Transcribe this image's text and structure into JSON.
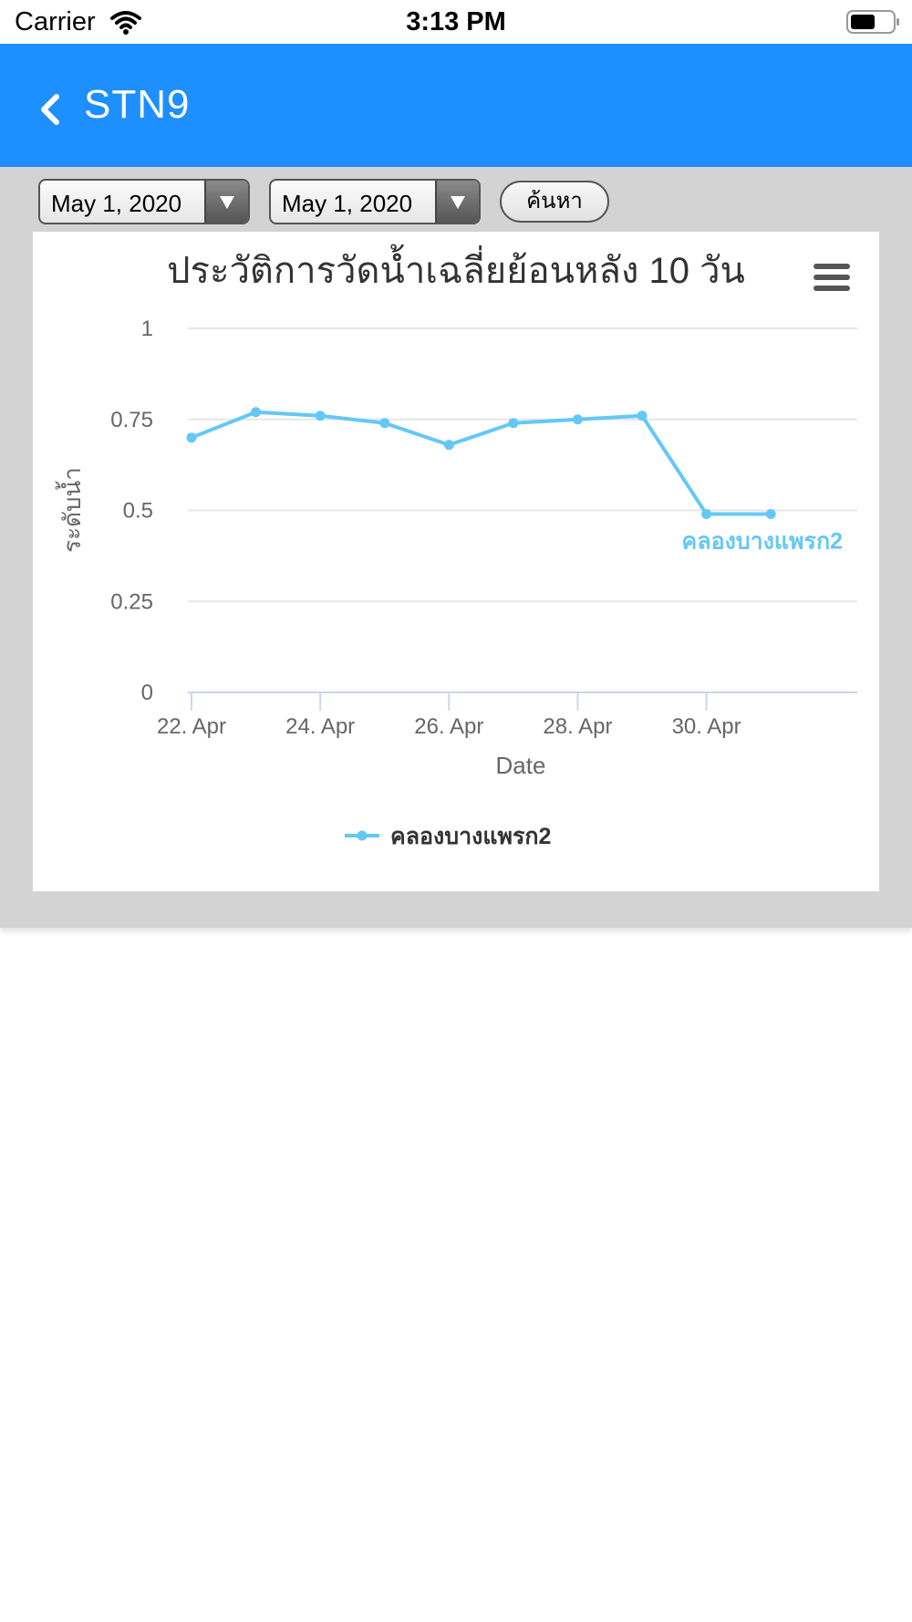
{
  "status_bar": {
    "carrier": "Carrier",
    "time": "3:13 PM"
  },
  "nav": {
    "title": "STN9"
  },
  "filters": {
    "start_date": "May 1, 2020",
    "end_date": "May 1, 2020",
    "search_label": "ค้นหา"
  },
  "colors": {
    "nav_bg": "#1e8fff",
    "series": "#64c8f7",
    "panel_bg": "#d3d3d3"
  },
  "chart_data": {
    "type": "line",
    "title": "ประวัติการวัดน้ำเฉลี่ยย้อนหลัง 10 วัน",
    "xlabel": "Date",
    "ylabel": "ระดับน้ำ",
    "ylim": [
      0,
      1
    ],
    "yticks": [
      "0",
      "0.25",
      "0.5",
      "0.75",
      "1"
    ],
    "xticks": [
      "22. Apr",
      "24. Apr",
      "26. Apr",
      "28. Apr",
      "30. Apr"
    ],
    "grid": true,
    "legend": "bottom",
    "series": [
      {
        "name": "คลองบางแพรก2",
        "x": [
          "2020-04-22",
          "2020-04-23",
          "2020-04-24",
          "2020-04-25",
          "2020-04-26",
          "2020-04-27",
          "2020-04-28",
          "2020-04-29",
          "2020-04-30",
          "2020-05-01"
        ],
        "values": [
          0.7,
          0.77,
          0.76,
          0.74,
          0.68,
          0.74,
          0.75,
          0.76,
          0.49,
          0.49
        ]
      }
    ]
  }
}
